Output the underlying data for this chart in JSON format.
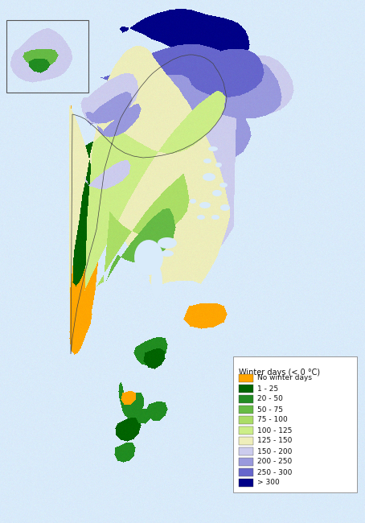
{
  "legend_title": "Winter days (< 0 °C)",
  "legend_labels": [
    "No winter days",
    "1 - 25",
    "20 - 50",
    "50 - 75",
    "75 - 100",
    "100 - 125",
    "125 - 150",
    "150 - 200",
    "200 - 250",
    "250 - 300",
    "> 300"
  ],
  "legend_colors": [
    "#FFA500",
    "#006400",
    "#228B22",
    "#66BB44",
    "#AADD66",
    "#CCEE88",
    "#EEEEBB",
    "#CCCCEE",
    "#9999DD",
    "#6666CC",
    "#000088"
  ],
  "sea_color": [
    0.85,
    0.92,
    0.98
  ],
  "background_color": "#FFFFFF",
  "fig_width": 4.54,
  "fig_height": 6.5,
  "dpi": 100
}
